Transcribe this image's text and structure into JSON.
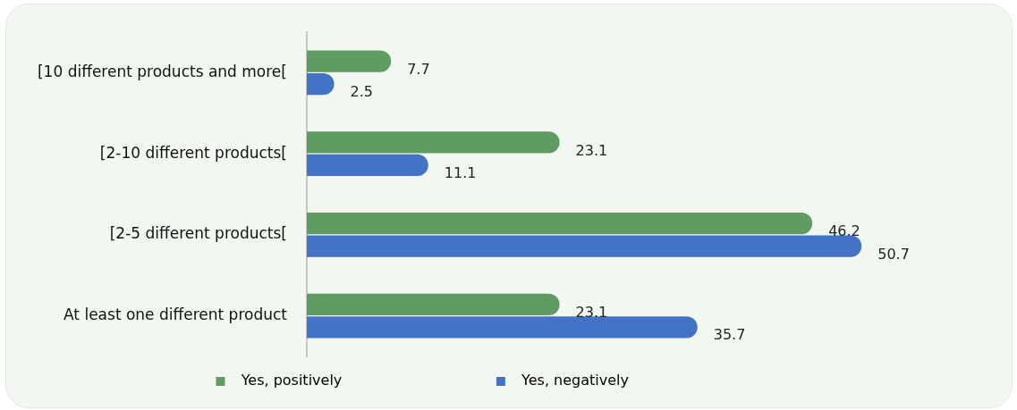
{
  "chart_data": {
    "type": "bar",
    "orientation": "horizontal",
    "categories": [
      "[10 different products and more[",
      "[2-10 different products[",
      "[2-5 different products[",
      "At least one different product"
    ],
    "series": [
      {
        "name": "Yes, positively",
        "color": "#5f9b62",
        "values": [
          7.7,
          23.1,
          46.2,
          23.1
        ]
      },
      {
        "name": "Yes, negatively",
        "color": "#4472c4",
        "values": [
          2.5,
          11.1,
          50.7,
          35.7
        ]
      }
    ],
    "data_labels": true,
    "legend": "bottom"
  }
}
